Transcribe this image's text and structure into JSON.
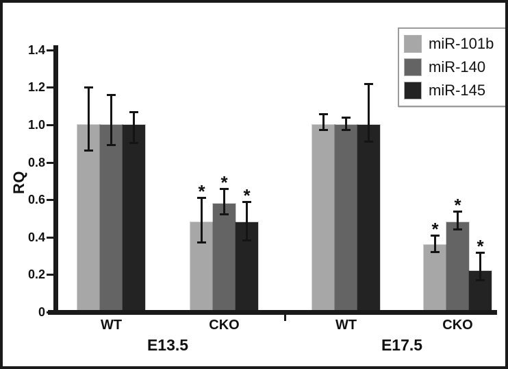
{
  "chart_data": {
    "type": "bar",
    "title": "",
    "xlabel": "",
    "ylabel": "RQ",
    "ylim": [
      0,
      1.4
    ],
    "grid": false,
    "legend_position": "top-right",
    "significance_marker": "*",
    "yticks": [
      {
        "value": 0,
        "label": "0"
      },
      {
        "value": 0.2,
        "label": "0.2"
      },
      {
        "value": 0.4,
        "label": "0.4"
      },
      {
        "value": 0.6,
        "label": "0.6"
      },
      {
        "value": 0.8,
        "label": "0.8"
      },
      {
        "value": 1.0,
        "label": "1.0"
      },
      {
        "value": 1.2,
        "label": "1.2"
      },
      {
        "value": 1.4,
        "label": "1.4"
      }
    ],
    "series": [
      {
        "name": "miR-101b",
        "color": "#a7a7a7"
      },
      {
        "name": "miR-140",
        "color": "#646464"
      },
      {
        "name": "miR-145",
        "color": "#232323"
      }
    ],
    "stages": [
      "E13.5",
      "E17.5"
    ],
    "groups": [
      {
        "stage": "E13.5",
        "condition": "WT",
        "bars": [
          {
            "series": "miR-101b",
            "value": 1.0,
            "err_up": 0.2,
            "err_down": 0.14,
            "significant": false
          },
          {
            "series": "miR-140",
            "value": 1.0,
            "err_up": 0.16,
            "err_down": 0.11,
            "significant": false
          },
          {
            "series": "miR-145",
            "value": 1.0,
            "err_up": 0.07,
            "err_down": 0.1,
            "significant": false
          }
        ]
      },
      {
        "stage": "E13.5",
        "condition": "CKO",
        "bars": [
          {
            "series": "miR-101b",
            "value": 0.48,
            "err_up": 0.13,
            "err_down": 0.11,
            "significant": true
          },
          {
            "series": "miR-140",
            "value": 0.58,
            "err_up": 0.08,
            "err_down": 0.06,
            "significant": true
          },
          {
            "series": "miR-145",
            "value": 0.48,
            "err_up": 0.11,
            "err_down": 0.1,
            "significant": true
          }
        ]
      },
      {
        "stage": "E17.5",
        "condition": "WT",
        "bars": [
          {
            "series": "miR-101b",
            "value": 1.0,
            "err_up": 0.06,
            "err_down": 0.03,
            "significant": false
          },
          {
            "series": "miR-140",
            "value": 1.0,
            "err_up": 0.04,
            "err_down": 0.03,
            "significant": false
          },
          {
            "series": "miR-145",
            "value": 1.0,
            "err_up": 0.22,
            "err_down": 0.09,
            "significant": false
          }
        ]
      },
      {
        "stage": "E17.5",
        "condition": "CKO",
        "bars": [
          {
            "series": "miR-101b",
            "value": 0.36,
            "err_up": 0.05,
            "err_down": 0.04,
            "significant": true
          },
          {
            "series": "miR-140",
            "value": 0.48,
            "err_up": 0.06,
            "err_down": 0.04,
            "significant": true
          },
          {
            "series": "miR-145",
            "value": 0.22,
            "err_up": 0.1,
            "err_down": 0.05,
            "significant": true
          }
        ]
      }
    ]
  }
}
